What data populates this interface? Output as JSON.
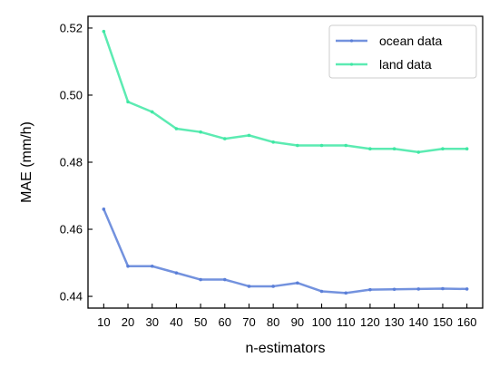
{
  "chart_data": {
    "type": "line",
    "x": [
      10,
      20,
      30,
      40,
      50,
      60,
      70,
      80,
      90,
      100,
      110,
      120,
      130,
      140,
      150,
      160
    ],
    "xlabel": "n-estimators",
    "ylabel": "MAE (mm/h)",
    "ylim": [
      0.4365,
      0.5235
    ],
    "yticks": [
      0.44,
      0.46,
      0.48,
      0.5,
      0.52
    ],
    "ytick_labels": [
      "0.44",
      "0.46",
      "0.48",
      "0.50",
      "0.52"
    ],
    "grid": false,
    "legend_position": "top-right",
    "series": [
      {
        "name": "ocean data",
        "color": "#5b7fd8",
        "values": [
          0.466,
          0.449,
          0.449,
          0.447,
          0.445,
          0.445,
          0.443,
          0.443,
          0.444,
          0.4415,
          0.441,
          0.442,
          0.4421,
          0.4422,
          0.4423,
          0.4422
        ]
      },
      {
        "name": "land data",
        "color": "#3fe8a4",
        "values": [
          0.519,
          0.498,
          0.495,
          0.49,
          0.489,
          0.487,
          0.488,
          0.486,
          0.485,
          0.485,
          0.485,
          0.484,
          0.484,
          0.483,
          0.484,
          0.484
        ]
      }
    ]
  }
}
